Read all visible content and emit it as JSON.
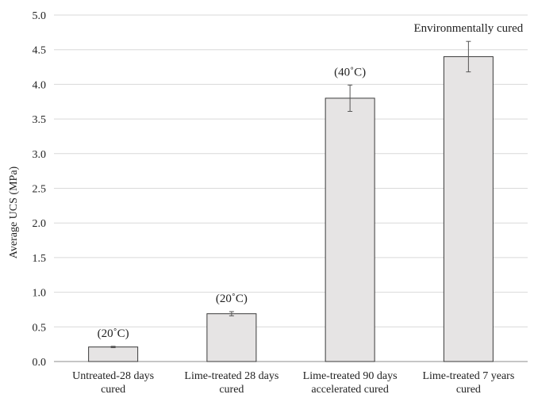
{
  "chart_data": {
    "type": "bar",
    "categories": [
      [
        "Untreated-28 days",
        "cured"
      ],
      [
        "Lime-treated 28 days",
        "cured"
      ],
      [
        "Lime-treated 90 days",
        "accelerated cured"
      ],
      [
        "Lime-treated 7 years",
        "cured"
      ]
    ],
    "values": [
      0.21,
      0.69,
      3.8,
      4.4
    ],
    "error": [
      0.01,
      0.03,
      0.19,
      0.22
    ],
    "annotations": [
      "(20˚C)",
      "(20˚C)",
      "(40˚C)",
      "Environmentally cured"
    ],
    "title": "",
    "xlabel": "",
    "ylabel": "Average UCS (MPa)",
    "ylim": [
      0,
      5
    ],
    "yticks": [
      "0.0",
      "0.5",
      "1.0",
      "1.5",
      "2.0",
      "2.5",
      "3.0",
      "3.5",
      "4.0",
      "4.5",
      "5.0"
    ],
    "grid": true,
    "colors": {
      "bar_fill": "#e6e4e4",
      "bar_stroke": "#3a3a3a",
      "grid": "#d9d9d9",
      "axis": "#8c8c8c"
    }
  }
}
